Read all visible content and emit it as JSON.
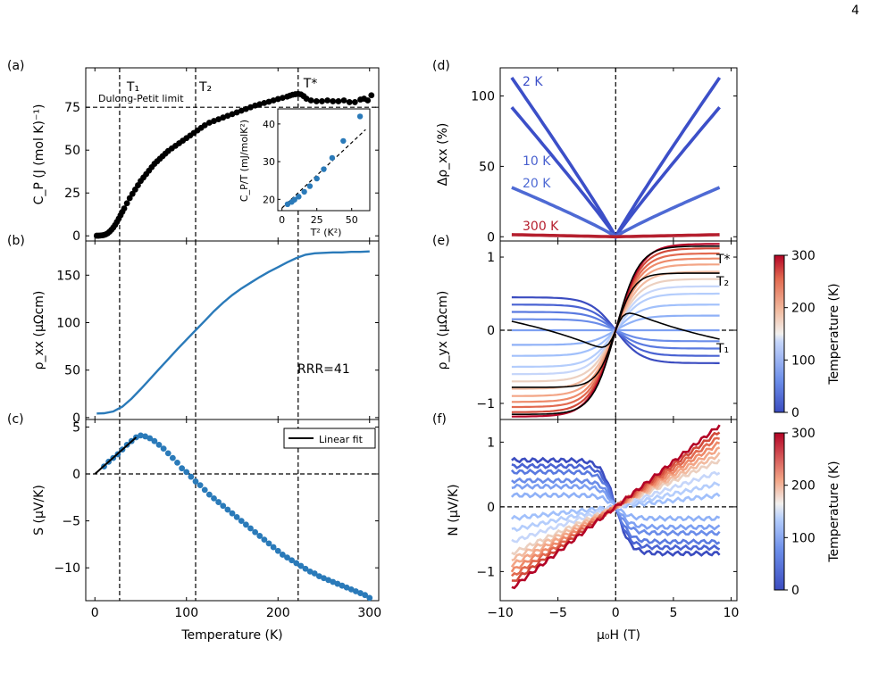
{
  "page_number": "4",
  "chart_data": [
    {
      "id": "a",
      "panel_label": "(a)",
      "type": "scatter",
      "ylabel": "C_P (J (mol K)⁻¹)",
      "ylim": [
        -3,
        98
      ],
      "xlim": [
        -10,
        310
      ],
      "yticks": [
        "0",
        "25",
        "50",
        "75"
      ],
      "annotations": {
        "T1": "T₁",
        "T2": "T₂",
        "Tstar": "T*",
        "dulong": "Dulong-Petit limit"
      },
      "vlines": [
        27,
        110,
        222
      ],
      "hline": 75,
      "series": [
        {
          "color": "#000000",
          "x": [
            2,
            4,
            6,
            8,
            10,
            12,
            14,
            16,
            18,
            20,
            22,
            24,
            26,
            28,
            30,
            32,
            35,
            38,
            41,
            44,
            47,
            50,
            53,
            56,
            59,
            62,
            65,
            68,
            71,
            74,
            77,
            80,
            84,
            88,
            92,
            96,
            100,
            104,
            108,
            112,
            116,
            120,
            125,
            130,
            135,
            140,
            145,
            150,
            155,
            160,
            165,
            170,
            175,
            180,
            185,
            190,
            195,
            200,
            205,
            210,
            213,
            216,
            219,
            222,
            225,
            228,
            231,
            236,
            242,
            248,
            254,
            260,
            266,
            272,
            278,
            284,
            290,
            294,
            298,
            302
          ],
          "y": [
            0.1,
            0.1,
            0.2,
            0.3,
            0.5,
            0.9,
            1.5,
            2.4,
            3.5,
            4.8,
            6.3,
            8.1,
            10,
            12,
            14,
            16,
            19,
            22,
            24.5,
            27,
            29.5,
            32,
            34,
            36,
            38,
            40,
            42,
            43.5,
            45,
            46.5,
            48,
            49.5,
            51,
            52.5,
            54,
            55.5,
            57,
            58.5,
            60,
            61.5,
            63,
            64.5,
            66,
            67,
            68,
            69,
            70,
            71,
            72,
            73,
            74,
            75,
            76,
            76.8,
            77.5,
            78.2,
            79,
            79.8,
            80.5,
            81.2,
            81.8,
            82.3,
            82.6,
            82.8,
            82.5,
            81.5,
            80,
            79,
            78.5,
            78.5,
            79,
            78.5,
            78.5,
            79,
            78,
            78,
            79.5,
            80,
            79,
            82
          ]
        }
      ],
      "inset": {
        "type": "scatter",
        "xlabel": "T² (K²)",
        "ylabel": "C_P/T (mJ/molK²)",
        "xlim": [
          -3,
          63
        ],
        "ylim": [
          17,
          44
        ],
        "xticks": [
          "0",
          "25",
          "50"
        ],
        "yticks": [
          "20",
          "30",
          "40"
        ],
        "points_x": [
          4,
          7,
          9,
          12,
          16,
          20,
          25,
          30,
          36,
          44,
          56
        ],
        "points_y": [
          18.7,
          19.3,
          19.9,
          20.7,
          22,
          23.5,
          25.5,
          28,
          31,
          35.5,
          42
        ],
        "fit_x": [
          0,
          60
        ],
        "fit_y": [
          17.7,
          38.5
        ]
      }
    },
    {
      "id": "b",
      "panel_label": "(b)",
      "type": "line",
      "ylabel": "ρ_xx (μΩcm)",
      "ylim": [
        -2,
        186
      ],
      "xlim": [
        -10,
        310
      ],
      "yticks": [
        "0",
        "50",
        "100",
        "150"
      ],
      "annotation": "RRR=41",
      "vlines": [
        27,
        110,
        222
      ],
      "series": [
        {
          "color": "#2a7ab9",
          "x": [
            2,
            10,
            20,
            30,
            40,
            50,
            60,
            70,
            80,
            90,
            100,
            110,
            120,
            130,
            140,
            150,
            160,
            170,
            180,
            190,
            200,
            210,
            220,
            230,
            240,
            250,
            260,
            270,
            280,
            290,
            300
          ],
          "y": [
            4.3,
            4.6,
            6.5,
            11.5,
            20,
            30,
            40.5,
            51,
            61.5,
            72,
            82,
            92,
            102,
            112,
            121,
            129,
            136,
            142,
            148,
            153.5,
            158.5,
            163.5,
            168,
            171.5,
            173,
            173.5,
            174,
            174,
            174.5,
            174.5,
            175
          ]
        }
      ]
    },
    {
      "id": "c",
      "panel_label": "(c)",
      "type": "scatter",
      "xlabel": "Temperature (K)",
      "ylabel": "S (μV/K)",
      "ylim": [
        -13.5,
        5.8
      ],
      "xlim": [
        -10,
        310
      ],
      "yticks": [
        "−10",
        "−5",
        "0",
        "5"
      ],
      "xticks": [
        "0",
        "100",
        "200",
        "300"
      ],
      "legend": "Linear fit",
      "vlines": [
        27,
        110,
        222
      ],
      "hline": 0,
      "fit_x": [
        0,
        45
      ],
      "fit_y": [
        0,
        3.9
      ],
      "series": [
        {
          "color": "#2a7ab9",
          "x": [
            10,
            15,
            20,
            25,
            30,
            35,
            40,
            45,
            50,
            55,
            60,
            65,
            70,
            75,
            80,
            85,
            90,
            95,
            100,
            105,
            110,
            115,
            120,
            125,
            130,
            135,
            140,
            145,
            150,
            155,
            160,
            165,
            170,
            175,
            180,
            185,
            190,
            195,
            200,
            205,
            210,
            215,
            220,
            225,
            230,
            235,
            240,
            245,
            250,
            255,
            260,
            265,
            270,
            275,
            280,
            285,
            290,
            295,
            300
          ],
          "y": [
            0.8,
            1.3,
            1.7,
            2.1,
            2.6,
            3.1,
            3.5,
            3.9,
            4.1,
            4.0,
            3.8,
            3.5,
            3.1,
            2.7,
            2.2,
            1.7,
            1.2,
            0.6,
            0.2,
            -0.3,
            -0.8,
            -1.2,
            -1.7,
            -2.2,
            -2.6,
            -3.0,
            -3.4,
            -3.8,
            -4.2,
            -4.6,
            -5.0,
            -5.4,
            -5.8,
            -6.2,
            -6.6,
            -7.0,
            -7.4,
            -7.8,
            -8.2,
            -8.6,
            -8.9,
            -9.2,
            -9.5,
            -9.8,
            -10.1,
            -10.4,
            -10.6,
            -10.9,
            -11.1,
            -11.3,
            -11.5,
            -11.7,
            -11.9,
            -12.1,
            -12.3,
            -12.5,
            -12.7,
            -12.9,
            -13.2
          ]
        }
      ]
    },
    {
      "id": "d",
      "panel_label": "(d)",
      "type": "line",
      "ylabel": "Δρ_xx (%)",
      "ylim": [
        -3,
        120
      ],
      "xlim": [
        -10,
        10.5
      ],
      "yticks": [
        "0",
        "50",
        "100"
      ],
      "vline": 0,
      "series": [
        {
          "name": "2 K",
          "color": "#3c4fc8",
          "ymax": 113,
          "power": 0.95
        },
        {
          "name": "",
          "color": "#3c4fc8",
          "ymax": 92,
          "power": 0.95
        },
        {
          "name": "10 K",
          "color": "#4961cf",
          "ymax": 0,
          "power": 1
        },
        {
          "name": "20 K",
          "color": "#4e6ad4",
          "ymax": 35,
          "power": 0.9
        },
        {
          "name": "300 K",
          "color": "#b51f2e",
          "ymax": 1.5,
          "power": 1
        }
      ]
    },
    {
      "id": "e",
      "panel_label": "(e)",
      "type": "line",
      "ylabel": "ρ_yx (μΩcm)",
      "ylim": [
        -1.22,
        1.22
      ],
      "xlim": [
        -10,
        10.5
      ],
      "yticks": [
        "−1",
        "0",
        "1"
      ],
      "annotations": {
        "Tstar": "T*",
        "T2": "T₂",
        "T1": "T₁"
      },
      "colorbar": {
        "label": "Temperature (K)",
        "ticks": [
          "0",
          "100",
          "200",
          "300"
        ]
      },
      "series_note": "field sweeps colored by temperature",
      "amplitudes": [
        -0.45,
        -0.35,
        -0.25,
        -0.15,
        0,
        0.2,
        0.35,
        0.5,
        0.6,
        0.7,
        0.8,
        0.9,
        0.98,
        1.05,
        1.12,
        1.18
      ],
      "colors": [
        "#3b4cc0",
        "#4a63d3",
        "#5a7ae0",
        "#6b8de9",
        "#7da0f2",
        "#8fb1f7",
        "#a1c0fb",
        "#b4cdfc",
        "#c6d6fa",
        "#ecd0c0",
        "#f2bba0",
        "#f3a586",
        "#ee8a6a",
        "#e26a50",
        "#d24a3a",
        "#b40426"
      ],
      "black_curves": [
        {
          "label": "T*",
          "a": 1.15,
          "w": 2.0
        },
        {
          "label": "T₂",
          "a": 0.78,
          "w": 1.6
        },
        {
          "label": "T₁",
          "a": -0.2,
          "w": 1.0
        }
      ]
    },
    {
      "id": "f",
      "panel_label": "(f)",
      "type": "line",
      "xlabel": "μ₀H (T)",
      "ylabel": "N (μV/K)",
      "ylim": [
        -1.45,
        1.35
      ],
      "xlim": [
        -10,
        10.5
      ],
      "yticks": [
        "−1",
        "0",
        "1"
      ],
      "xticks": [
        "−10",
        "−5",
        "0",
        "5",
        "10"
      ],
      "colorbar": {
        "label": "Temperature (K)",
        "ticks": [
          "0",
          "100",
          "200",
          "300"
        ]
      },
      "slopes": [
        -0.08,
        -0.07,
        -0.06,
        -0.045,
        -0.035,
        -0.02,
        0.02,
        0.04,
        0.06,
        0.08,
        0.09,
        0.1,
        0.11,
        0.12,
        0.13,
        0.14
      ],
      "colors": [
        "#3b4cc0",
        "#4a63d3",
        "#5a7ae0",
        "#6b8de9",
        "#7da0f2",
        "#8fb1f7",
        "#a1c0fb",
        "#b4cdfc",
        "#c6d6fa",
        "#ecd0c0",
        "#f2bba0",
        "#f3a586",
        "#ee8a6a",
        "#e26a50",
        "#d24a3a",
        "#b40426"
      ]
    }
  ]
}
